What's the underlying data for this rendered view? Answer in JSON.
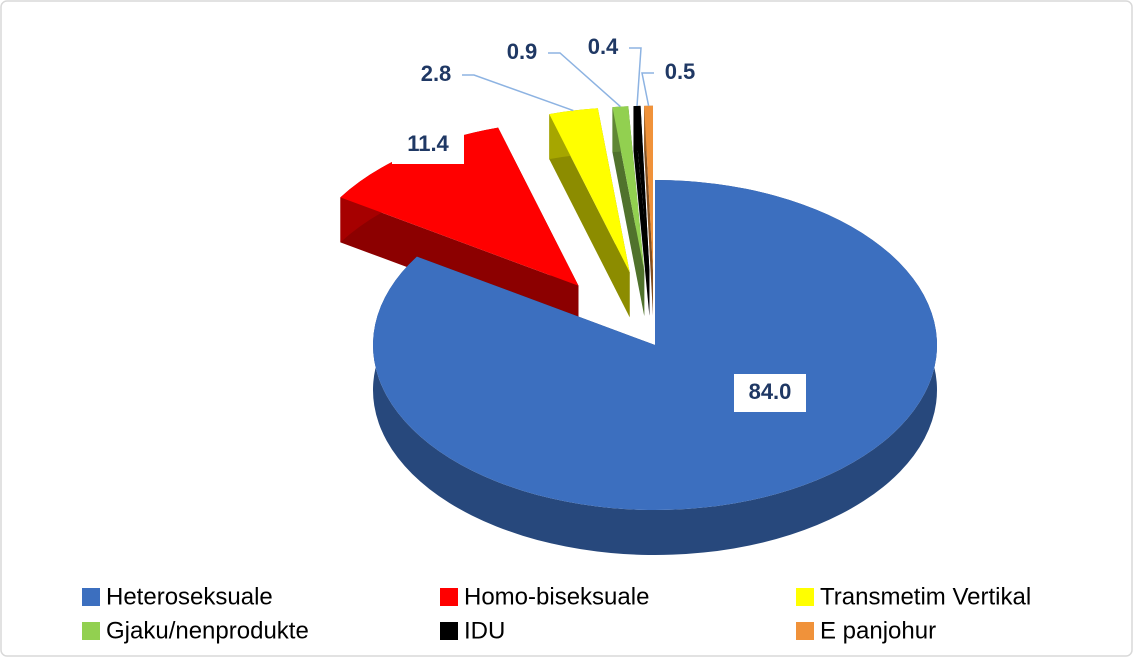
{
  "chart_data": {
    "type": "pie",
    "categories": [
      "Heteroseksuale",
      "Homo-biseksuale",
      "Transmetim Vertikal",
      "Gjaku/nenprodukte",
      "IDU",
      "E panjohur"
    ],
    "values": [
      84,
      11.4,
      2.8,
      0.9,
      0.4,
      0.5
    ],
    "value_labels": [
      "84.0",
      "11.4",
      "2.8",
      "0.9",
      "0.4",
      "0.5"
    ],
    "colors": [
      "#3c6fbf",
      "#ff0000",
      "#ffff00",
      "#92d050",
      "#000000",
      "#f0923a"
    ],
    "legend": "bottom"
  }
}
